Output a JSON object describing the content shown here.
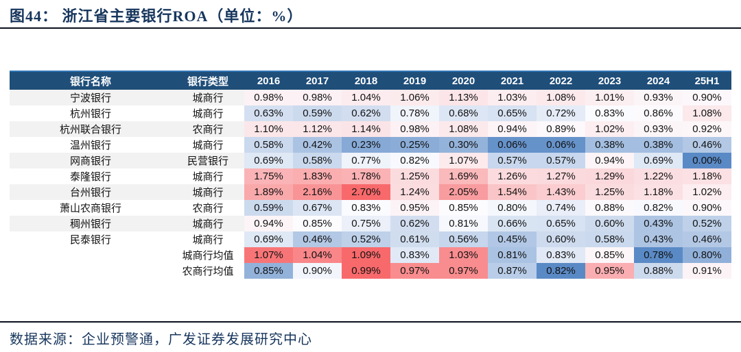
{
  "title": "图44：  浙江省主要银行ROA（单位：%）",
  "footer": {
    "source": "数据来源：企业预警通，广发证券发展研究中心"
  },
  "table": {
    "headers": [
      "银行名称",
      "银行类型",
      "2016",
      "2017",
      "2018",
      "2019",
      "2020",
      "2021",
      "2022",
      "2023",
      "2024",
      "25H1"
    ],
    "rows": [
      {
        "name": "宁波银行",
        "type": "城商行",
        "scale": "banks",
        "values": [
          "0.98%",
          "0.98%",
          "1.04%",
          "1.06%",
          "1.13%",
          "1.03%",
          "1.08%",
          "1.01%",
          "0.93%",
          "0.90%"
        ]
      },
      {
        "name": "杭州银行",
        "type": "城商行",
        "scale": "banks",
        "values": [
          "0.63%",
          "0.59%",
          "0.62%",
          "0.78%",
          "0.68%",
          "0.65%",
          "0.72%",
          "0.83%",
          "0.86%",
          "1.08%"
        ]
      },
      {
        "name": "杭州联合银行",
        "type": "农商行",
        "scale": "banks",
        "values": [
          "1.10%",
          "1.12%",
          "1.14%",
          "0.98%",
          "1.08%",
          "0.94%",
          "0.89%",
          "1.02%",
          "0.93%",
          "0.92%"
        ]
      },
      {
        "name": "温州银行",
        "type": "城商行",
        "scale": "banks",
        "values": [
          "0.58%",
          "0.42%",
          "0.23%",
          "0.25%",
          "0.30%",
          "0.06%",
          "0.06%",
          "0.38%",
          "0.38%",
          "0.46%"
        ]
      },
      {
        "name": "网商银行",
        "type": "民营银行",
        "scale": "banks",
        "values": [
          "0.69%",
          "0.58%",
          "0.77%",
          "0.82%",
          "1.07%",
          "0.57%",
          "0.57%",
          "0.94%",
          "0.69%",
          "0.00%"
        ]
      },
      {
        "name": "泰隆银行",
        "type": "城商行",
        "scale": "banks",
        "values": [
          "1.75%",
          "1.83%",
          "1.78%",
          "1.25%",
          "1.69%",
          "1.26%",
          "1.27%",
          "1.29%",
          "1.22%",
          "1.18%"
        ]
      },
      {
        "name": "台州银行",
        "type": "城商行",
        "scale": "banks",
        "values": [
          "1.89%",
          "2.16%",
          "2.70%",
          "1.24%",
          "2.05%",
          "1.54%",
          "1.43%",
          "1.25%",
          "1.18%",
          "1.02%"
        ]
      },
      {
        "name": "萧山农商银行",
        "type": "农商行",
        "scale": "banks",
        "values": [
          "0.59%",
          "0.67%",
          "0.83%",
          "0.95%",
          "0.85%",
          "0.80%",
          "0.74%",
          "0.88%",
          "0.82%",
          "0.90%"
        ]
      },
      {
        "name": "稠州银行",
        "type": "城商行",
        "scale": "banks",
        "values": [
          "0.94%",
          "0.85%",
          "0.75%",
          "0.62%",
          "0.81%",
          "0.66%",
          "0.65%",
          "0.60%",
          "0.43%",
          "0.52%"
        ]
      },
      {
        "name": "民泰银行",
        "type": "城商行",
        "scale": "banks",
        "values": [
          "0.69%",
          "0.46%",
          "0.52%",
          "0.61%",
          "0.56%",
          "0.45%",
          "0.60%",
          "0.58%",
          "0.43%",
          "0.46%"
        ]
      },
      {
        "name": "",
        "type": "城商行均值",
        "scale": "row",
        "values": [
          "1.07%",
          "1.04%",
          "1.09%",
          "0.83%",
          "1.03%",
          "0.81%",
          "0.83%",
          "0.85%",
          "0.78%",
          "0.80%"
        ]
      },
      {
        "name": "",
        "type": "农商行均值",
        "scale": "row",
        "values": [
          "0.85%",
          "0.90%",
          "0.99%",
          "0.97%",
          "0.97%",
          "0.87%",
          "0.82%",
          "0.95%",
          "0.88%",
          "0.91%"
        ]
      }
    ],
    "colorscale": {
      "low": "#5A8AC6",
      "mid": "#FCFCFF",
      "high": "#F8696B"
    }
  },
  "colors": {
    "header_bg": "#1F4E79",
    "header_accent": "#2E75B6",
    "title_text": "#17365D",
    "alt_row_bg": "#F2F2F2",
    "divider": "#0A0F1A"
  }
}
